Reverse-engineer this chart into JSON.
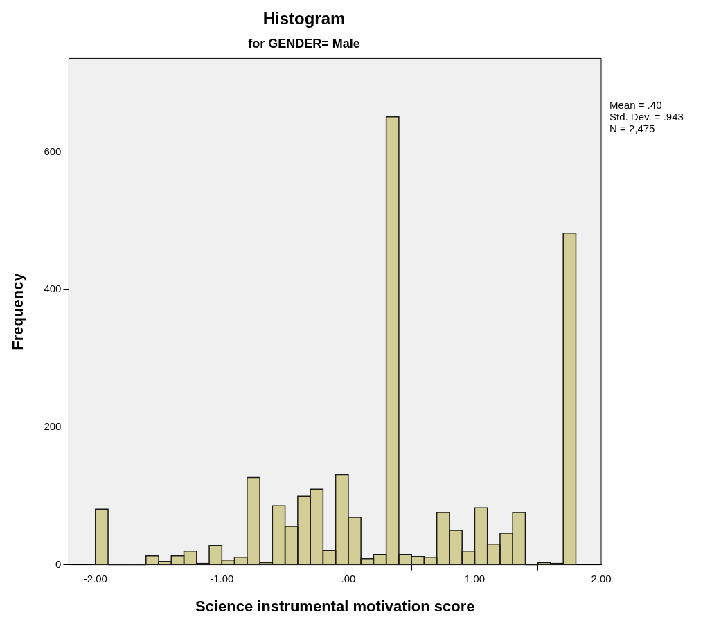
{
  "chart_data": {
    "type": "histogram",
    "title": "Histogram",
    "subtitle": "for GENDER= Male",
    "xlabel": "Science instrumental motivation score",
    "ylabel": "Frequency",
    "annotations": [
      "Mean = .40",
      "Std. Dev. = .943",
      "N = 2,475"
    ],
    "bins": [
      -2.0,
      -1.9,
      -1.8,
      -1.7,
      -1.6,
      -1.5,
      -1.4,
      -1.3,
      -1.2,
      -1.1,
      -1.0,
      -0.9,
      -0.8,
      -0.7,
      -0.6,
      -0.5,
      -0.4,
      -0.3,
      -0.2,
      -0.1,
      0.0,
      0.1,
      0.2,
      0.3,
      0.4,
      0.5,
      0.6,
      0.7,
      0.8,
      0.9,
      1.0,
      1.1,
      1.2,
      1.3,
      1.4,
      1.5,
      1.6,
      1.7,
      1.8
    ],
    "values": [
      81,
      0,
      0,
      0,
      13,
      5,
      13,
      20,
      2,
      28,
      7,
      11,
      127,
      3,
      86,
      56,
      100,
      110,
      21,
      131,
      69,
      9,
      15,
      651,
      15,
      12,
      11,
      76,
      50,
      20,
      83,
      30,
      46,
      76,
      0,
      3,
      2,
      482
    ],
    "color": "#d3ce96",
    "xlim": [
      -2.21,
      2.0
    ],
    "xticks": [
      {
        "value": -2,
        "label": "-2.00"
      },
      {
        "value": -1,
        "label": "-1.00"
      },
      {
        "value": 0,
        "label": ".00"
      },
      {
        "value": 1,
        "label": "1.00"
      },
      {
        "value": 2,
        "label": "2.00"
      }
    ],
    "ylim": [
      0,
      736
    ],
    "yticks": [
      0,
      200,
      400,
      600
    ],
    "grid": false,
    "legend": false
  }
}
